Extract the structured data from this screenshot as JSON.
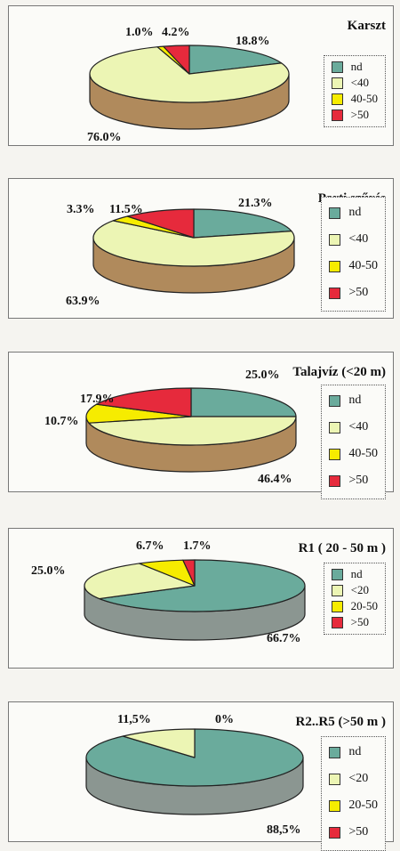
{
  "colors": {
    "nd": "#6aab9c",
    "lt": "#ecf5b4",
    "mid": "#f6ec00",
    "hi": "#e62a3c",
    "side_brown": "#b08a5c",
    "side_grey": "#8b9691"
  },
  "chart_data": [
    {
      "type": "pie",
      "title": "Karszt",
      "legend_position": "right",
      "slices": [
        {
          "label": "nd",
          "value": 18.8,
          "display": "18.8%"
        },
        {
          "label": "<40",
          "value": 76.0,
          "display": "76.0%"
        },
        {
          "label": "40-50",
          "value": 1.0,
          "display": "1.0%"
        },
        {
          "label": ">50",
          "value": 4.2,
          "display": "4.2%"
        }
      ]
    },
    {
      "type": "pie",
      "title": "Parti szűrés",
      "legend_position": "right",
      "slices": [
        {
          "label": "nd",
          "value": 21.3,
          "display": "21.3%"
        },
        {
          "label": "<40",
          "value": 63.9,
          "display": "63.9%"
        },
        {
          "label": "40-50",
          "value": 3.3,
          "display": "3.3%"
        },
        {
          "label": ">50",
          "value": 11.5,
          "display": "11.5%"
        }
      ]
    },
    {
      "type": "pie",
      "title": "Talajvíz (<20 m)",
      "legend_position": "right",
      "slices": [
        {
          "label": "nd",
          "value": 25.0,
          "display": "25.0%"
        },
        {
          "label": "<40",
          "value": 46.4,
          "display": "46.4%"
        },
        {
          "label": "40-50",
          "value": 10.7,
          "display": "10.7%"
        },
        {
          "label": ">50",
          "value": 17.9,
          "display": "17.9%"
        }
      ]
    },
    {
      "type": "pie",
      "title": "R1 ( 20 - 50 m )",
      "legend_position": "right",
      "slices": [
        {
          "label": "nd",
          "value": 66.7,
          "display": "66.7%"
        },
        {
          "label": "<20",
          "value": 25.0,
          "display": "25.0%"
        },
        {
          "label": "20-50",
          "value": 6.7,
          "display": "6.7%"
        },
        {
          "label": ">50",
          "value": 1.7,
          "display": "1.7%"
        }
      ]
    },
    {
      "type": "pie",
      "title": "R2..R5 (>50 m )",
      "legend_position": "right",
      "slices": [
        {
          "label": "nd",
          "value": 88.5,
          "display": "88,5%"
        },
        {
          "label": "<20",
          "value": 11.5,
          "display": "11,5%"
        },
        {
          "label": "20-50",
          "value": 0,
          "display": "0%"
        },
        {
          "label": ">50",
          "value": 0,
          "display": ""
        }
      ]
    }
  ]
}
